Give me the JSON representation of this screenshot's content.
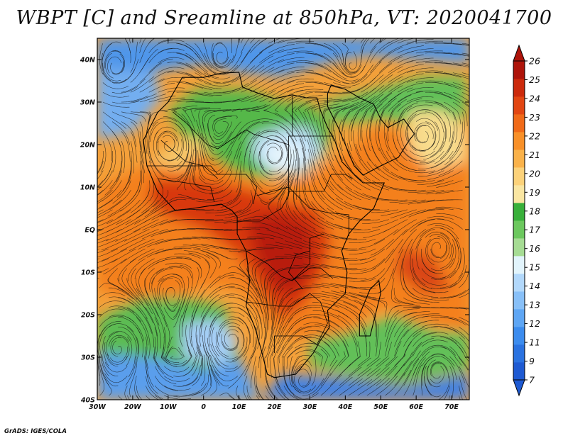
{
  "title": "WBPT [C] and Sreamline at 850hPa, VT: 2020041700",
  "credit": "GrADS: IGES/COLA",
  "map": {
    "lon_range": [
      -30,
      75
    ],
    "lat_range": [
      -40,
      45
    ],
    "lon_ticks": [
      {
        "value": -30,
        "label": "30W"
      },
      {
        "value": -20,
        "label": "20W"
      },
      {
        "value": -10,
        "label": "10W"
      },
      {
        "value": 0,
        "label": "0"
      },
      {
        "value": 10,
        "label": "10E"
      },
      {
        "value": 20,
        "label": "20E"
      },
      {
        "value": 30,
        "label": "30E"
      },
      {
        "value": 40,
        "label": "40E"
      },
      {
        "value": 50,
        "label": "50E"
      },
      {
        "value": 60,
        "label": "60E"
      },
      {
        "value": 70,
        "label": "70E"
      }
    ],
    "lat_ticks": [
      {
        "value": 40,
        "label": "40N"
      },
      {
        "value": 30,
        "label": "30N"
      },
      {
        "value": 20,
        "label": "20N"
      },
      {
        "value": 10,
        "label": "10N"
      },
      {
        "value": 0,
        "label": "EQ"
      },
      {
        "value": -10,
        "label": "10S"
      },
      {
        "value": -20,
        "label": "20S"
      },
      {
        "value": -30,
        "label": "30S"
      },
      {
        "value": -40,
        "label": "40S"
      }
    ]
  },
  "colorbar": {
    "labels": [
      "7",
      "9",
      "11",
      "12",
      "13",
      "14",
      "15",
      "16",
      "17",
      "18",
      "19",
      "20",
      "21",
      "22",
      "23",
      "24",
      "25",
      "26"
    ],
    "colors": [
      "#1e5ad2",
      "#2a72e0",
      "#3c8cee",
      "#5ea6f4",
      "#88c0f8",
      "#b2d8fb",
      "#e2f4fc",
      "#a6dc94",
      "#6cc85e",
      "#38b03a",
      "#fae6a2",
      "#fcd27a",
      "#fab24a",
      "#f89028",
      "#f06a18",
      "#e24612",
      "#cc2a0c",
      "#ae140a"
    ]
  },
  "regions": [
    {
      "name": "n-africa-green",
      "color": "#54b848",
      "pts": [
        [
          -10,
          28
        ],
        [
          -2,
          33
        ],
        [
          12,
          33
        ],
        [
          22,
          30
        ],
        [
          30,
          30
        ],
        [
          36,
          24
        ],
        [
          34,
          17
        ],
        [
          26,
          16
        ],
        [
          18,
          12
        ],
        [
          10,
          13
        ],
        [
          0,
          17
        ],
        [
          -6,
          22
        ]
      ]
    },
    {
      "name": "arabia-green",
      "color": "#62c058",
      "pts": [
        [
          34,
          30
        ],
        [
          48,
          33
        ],
        [
          62,
          36
        ],
        [
          74,
          36
        ],
        [
          74,
          26
        ],
        [
          64,
          24
        ],
        [
          52,
          26
        ],
        [
          40,
          25
        ],
        [
          34,
          26
        ]
      ]
    },
    {
      "name": "sahara-light-blue",
      "color": "#bddff7",
      "pts": [
        [
          14,
          22
        ],
        [
          22,
          24
        ],
        [
          30,
          24
        ],
        [
          34,
          18
        ],
        [
          28,
          13
        ],
        [
          20,
          13
        ],
        [
          14,
          17
        ]
      ]
    },
    {
      "name": "sahara-pale-blue",
      "color": "#e4f4fc",
      "pts": [
        [
          17,
          20
        ],
        [
          25,
          21
        ],
        [
          30,
          18
        ],
        [
          24,
          14
        ],
        [
          18,
          15
        ]
      ]
    },
    {
      "name": "mediterranean-blue",
      "color": "#4f96ea",
      "pts": [
        [
          -30,
          45
        ],
        [
          75,
          45
        ],
        [
          75,
          39
        ],
        [
          60,
          40
        ],
        [
          46,
          41
        ],
        [
          34,
          39
        ],
        [
          22,
          36
        ],
        [
          10,
          37
        ],
        [
          0,
          39
        ],
        [
          -14,
          37
        ],
        [
          -30,
          38
        ]
      ]
    },
    {
      "name": "atlantic-nw-blue",
      "color": "#73aef0",
      "pts": [
        [
          -30,
          38
        ],
        [
          -14,
          37
        ],
        [
          -12,
          31
        ],
        [
          -20,
          23
        ],
        [
          -30,
          21
        ]
      ]
    },
    {
      "name": "tropical-belt-orange",
      "color": "#f4801f",
      "pts": [
        [
          -30,
          10
        ],
        [
          -14,
          16
        ],
        [
          -4,
          20
        ],
        [
          8,
          14
        ],
        [
          20,
          10
        ],
        [
          30,
          12
        ],
        [
          40,
          18
        ],
        [
          50,
          25
        ],
        [
          60,
          20
        ],
        [
          75,
          24
        ],
        [
          75,
          -24
        ],
        [
          60,
          -22
        ],
        [
          50,
          -18
        ],
        [
          40,
          -24
        ],
        [
          30,
          -26
        ],
        [
          20,
          -24
        ],
        [
          10,
          -14
        ],
        [
          0,
          -13
        ],
        [
          -10,
          -17
        ],
        [
          -20,
          -17
        ],
        [
          -30,
          -14
        ]
      ]
    },
    {
      "name": "central-africa-red",
      "color": "#d8370f",
      "pts": [
        [
          -14,
          12
        ],
        [
          -2,
          12
        ],
        [
          10,
          10
        ],
        [
          22,
          7
        ],
        [
          32,
          5
        ],
        [
          36,
          -2
        ],
        [
          34,
          -10
        ],
        [
          28,
          -18
        ],
        [
          22,
          -21
        ],
        [
          16,
          -14
        ],
        [
          10,
          -6
        ],
        [
          0,
          0
        ],
        [
          -10,
          3
        ],
        [
          -16,
          7
        ]
      ]
    },
    {
      "name": "congo-dark-red",
      "color": "#b81c0c",
      "pts": [
        [
          12,
          3
        ],
        [
          22,
          4
        ],
        [
          30,
          1
        ],
        [
          31,
          -8
        ],
        [
          26,
          -15
        ],
        [
          20,
          -14
        ],
        [
          15,
          -6
        ]
      ]
    },
    {
      "name": "indian-ocean-red",
      "color": "#da4612",
      "pts": [
        [
          56,
          -4
        ],
        [
          64,
          -6
        ],
        [
          70,
          -14
        ],
        [
          62,
          -15
        ],
        [
          54,
          -10
        ]
      ]
    },
    {
      "name": "south-atlantic-green",
      "color": "#5cbc52",
      "pts": [
        [
          -30,
          -21
        ],
        [
          -18,
          -16
        ],
        [
          -6,
          -16
        ],
        [
          6,
          -18
        ],
        [
          10,
          -30
        ],
        [
          0,
          -33
        ],
        [
          -14,
          -30
        ],
        [
          -30,
          -29
        ]
      ]
    },
    {
      "name": "south-atlantic-blue",
      "color": "#5a9eec",
      "pts": [
        [
          -30,
          -29
        ],
        [
          -14,
          -30
        ],
        [
          0,
          -33
        ],
        [
          10,
          -30
        ],
        [
          14,
          -36
        ],
        [
          16,
          -40
        ],
        [
          -30,
          -40
        ]
      ]
    },
    {
      "name": "south-atlantic-light",
      "color": "#a5cef6",
      "pts": [
        [
          -6,
          -22
        ],
        [
          4,
          -21
        ],
        [
          10,
          -26
        ],
        [
          6,
          -32
        ],
        [
          -6,
          -30
        ]
      ]
    },
    {
      "name": "south-indian-green",
      "color": "#62c058",
      "pts": [
        [
          30,
          -26
        ],
        [
          42,
          -24
        ],
        [
          54,
          -20
        ],
        [
          66,
          -24
        ],
        [
          75,
          -24
        ],
        [
          75,
          -33
        ],
        [
          56,
          -36
        ],
        [
          40,
          -34
        ],
        [
          30,
          -32
        ]
      ]
    },
    {
      "name": "south-indian-blue",
      "color": "#3f82e6",
      "pts": [
        [
          22,
          -34
        ],
        [
          40,
          -35
        ],
        [
          56,
          -37
        ],
        [
          75,
          -34
        ],
        [
          75,
          -40
        ],
        [
          16,
          -40
        ]
      ]
    },
    {
      "name": "arabia-yellow",
      "color": "#f8dc8c",
      "pts": [
        [
          58,
          28
        ],
        [
          68,
          28
        ],
        [
          74,
          24
        ],
        [
          74,
          16
        ],
        [
          64,
          14
        ],
        [
          58,
          19
        ]
      ]
    },
    {
      "name": "sahel-yellow",
      "color": "#f6c86a",
      "pts": [
        [
          -16,
          16
        ],
        [
          -4,
          22
        ],
        [
          2,
          20
        ],
        [
          -6,
          14
        ]
      ]
    }
  ],
  "coastline": [
    [
      -17,
      21
    ],
    [
      -16,
      15
    ],
    [
      -13,
      9
    ],
    [
      -8,
      4.5
    ],
    [
      -3,
      5
    ],
    [
      5,
      6
    ],
    [
      8,
      4.5
    ],
    [
      9.5,
      3
    ],
    [
      9.5,
      -1
    ],
    [
      12,
      -5
    ],
    [
      13,
      -12
    ],
    [
      12,
      -18
    ],
    [
      14.5,
      -23
    ],
    [
      16.5,
      -29
    ],
    [
      18,
      -34
    ],
    [
      20,
      -34.8
    ],
    [
      26,
      -34
    ],
    [
      31,
      -29
    ],
    [
      33,
      -26
    ],
    [
      35.5,
      -23
    ],
    [
      35,
      -19
    ],
    [
      40,
      -15
    ],
    [
      40.5,
      -10
    ],
    [
      39,
      -5
    ],
    [
      41,
      -1
    ],
    [
      44,
      2
    ],
    [
      48,
      5
    ],
    [
      51,
      11
    ],
    [
      45,
      11
    ],
    [
      43,
      12.5
    ],
    [
      39,
      16
    ],
    [
      37,
      21
    ],
    [
      35,
      24
    ],
    [
      33,
      28
    ],
    [
      32,
      31
    ],
    [
      29,
      31
    ],
    [
      25,
      31.7
    ],
    [
      20,
      30.8
    ],
    [
      15,
      32.2
    ],
    [
      11,
      33.5
    ],
    [
      10,
      37
    ],
    [
      5,
      36.8
    ],
    [
      0,
      35.8
    ],
    [
      -6,
      35.8
    ],
    [
      -10,
      30
    ],
    [
      -13,
      27.5
    ],
    [
      -17,
      21
    ]
  ],
  "coastline_arabia": [
    [
      35,
      29
    ],
    [
      38,
      24
    ],
    [
      40,
      20
    ],
    [
      42.5,
      15
    ],
    [
      45,
      12.8
    ],
    [
      50,
      15
    ],
    [
      55,
      17
    ],
    [
      58,
      21
    ],
    [
      59.5,
      22.5
    ],
    [
      56.5,
      26
    ],
    [
      52,
      24
    ],
    [
      50,
      26
    ],
    [
      48,
      29.5
    ],
    [
      44,
      31
    ],
    [
      40,
      33
    ],
    [
      36,
      34
    ],
    [
      35,
      32
    ],
    [
      35,
      29
    ]
  ],
  "madagascar": [
    [
      44,
      -25
    ],
    [
      47,
      -25
    ],
    [
      50,
      -15
    ],
    [
      49.5,
      -12
    ],
    [
      47,
      -14
    ],
    [
      44,
      -20
    ]
  ],
  "borders": [
    [
      [
        -8.7,
        27.7
      ],
      [
        -4.8,
        25
      ],
      [
        1,
        20
      ],
      [
        4,
        19
      ],
      [
        12,
        23.5
      ],
      [
        14,
        22.5
      ],
      [
        24,
        20
      ],
      [
        24,
        22
      ],
      [
        25,
        22
      ],
      [
        25,
        31.5
      ]
    ],
    [
      [
        24,
        20
      ],
      [
        24,
        8
      ],
      [
        22,
        5
      ],
      [
        16,
        2
      ],
      [
        9.5,
        2
      ]
    ],
    [
      [
        25,
        22
      ],
      [
        36.8,
        22
      ]
    ],
    [
      [
        24,
        9
      ],
      [
        34,
        9
      ],
      [
        36,
        13
      ],
      [
        40,
        13
      ],
      [
        42,
        12
      ]
    ],
    [
      [
        15,
        8
      ],
      [
        24,
        10
      ],
      [
        30,
        5
      ],
      [
        35,
        4
      ],
      [
        41,
        3.5
      ],
      [
        41,
        -1.5
      ]
    ],
    [
      [
        12,
        -5
      ],
      [
        18,
        -8
      ],
      [
        22,
        -11
      ],
      [
        25,
        -12
      ],
      [
        30,
        -8
      ],
      [
        30,
        -2
      ],
      [
        34,
        -1
      ]
    ],
    [
      [
        12,
        -17
      ],
      [
        21,
        -18
      ],
      [
        25,
        -18
      ],
      [
        30,
        -15
      ],
      [
        33,
        -17
      ],
      [
        35,
        -22
      ],
      [
        32,
        -27
      ],
      [
        28,
        -25
      ],
      [
        25,
        -25
      ],
      [
        20,
        -25
      ],
      [
        20,
        -29
      ]
    ],
    [
      [
        -13,
        12
      ],
      [
        -5,
        11
      ],
      [
        2,
        10
      ],
      [
        3,
        6.5
      ]
    ],
    [
      [
        -16,
        15
      ],
      [
        -12,
        15
      ],
      [
        -5,
        15
      ],
      [
        2,
        15
      ],
      [
        4,
        13
      ],
      [
        12,
        13
      ],
      [
        15,
        10
      ],
      [
        14,
        6
      ]
    ],
    [
      [
        -12,
        21
      ],
      [
        -5,
        16
      ],
      [
        0,
        15
      ],
      [
        4,
        12
      ]
    ],
    [
      [
        30,
        -2
      ],
      [
        30,
        -5
      ],
      [
        26,
        -6
      ],
      [
        24,
        -10
      ],
      [
        28,
        -14
      ]
    ],
    [
      [
        36.5,
        -11.5
      ],
      [
        33,
        -9
      ],
      [
        30,
        -9
      ],
      [
        25,
        -12
      ]
    ]
  ]
}
